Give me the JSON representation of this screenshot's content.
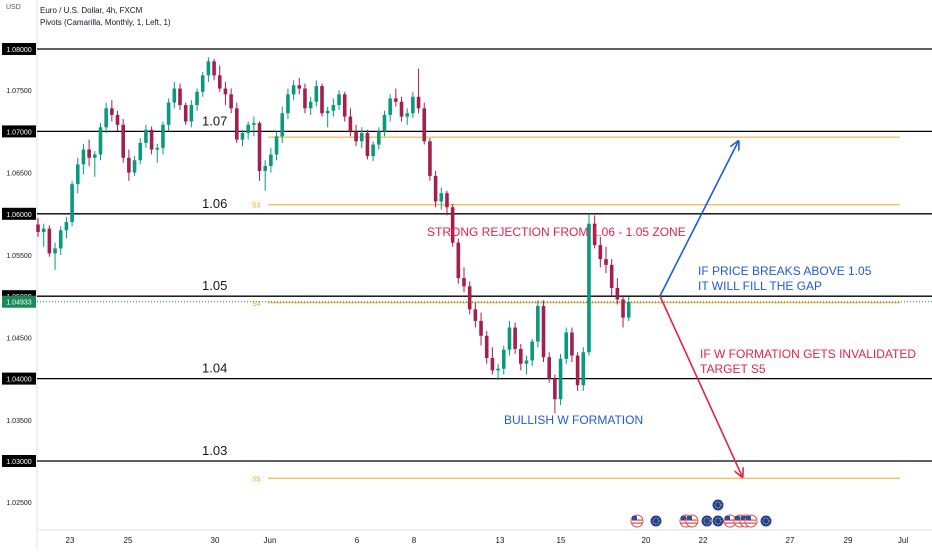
{
  "header": {
    "currency": "USD",
    "symbol": "Euro / U.S. Dollar, 4h, FXCM",
    "indicator": "Pivots (Camarilla, Monthly, 1, Left, 1)"
  },
  "colors": {
    "up": "#26a69a",
    "down": "#ef5350",
    "up_candle": "#089981",
    "down_candle": "#a61e4d",
    "pivot": "#f5a623",
    "blue_text": "#1e5bd8",
    "red_text": "#e0244a",
    "price_tag": "#1b8a5a"
  },
  "chart_data": {
    "type": "candlestick",
    "title": "Euro / U.S. Dollar, 4h, FXCM",
    "ylim": [
      1.0225,
      1.0815
    ],
    "y_ticks": [
      "1.08000",
      "1.07500",
      "1.07000",
      "1.06500",
      "1.06000",
      "1.05500",
      "1.05000",
      "1.04500",
      "1.04000",
      "1.03500",
      "1.03000",
      "1.02500"
    ],
    "y_tick_values": [
      1.08,
      1.075,
      1.07,
      1.065,
      1.06,
      1.055,
      1.05,
      1.045,
      1.04,
      1.035,
      1.03,
      1.025
    ],
    "highlighted_ticks": [
      "1.08000",
      "1.07000",
      "1.06000",
      "1.05000",
      "1.04000",
      "1.03000"
    ],
    "last_price": "1.04933",
    "last_price_value": 1.04933,
    "x_ticks": [
      "23",
      "25",
      "30",
      "Jun",
      "6",
      "8",
      "13",
      "15",
      "20",
      "22",
      "27",
      "29",
      "Jul"
    ],
    "horizontal_levels": [
      {
        "label": "1.07",
        "value": 1.07
      },
      {
        "label": "1.06",
        "value": 1.06
      },
      {
        "label": "1.05",
        "value": 1.05
      },
      {
        "label": "1.04",
        "value": 1.04
      },
      {
        "label": "1.03",
        "value": 1.03
      },
      {
        "label": "",
        "value": 1.08
      }
    ],
    "pivots": [
      {
        "label": "",
        "value": 1.0693
      },
      {
        "label": "S3",
        "value": 1.0611
      },
      {
        "label": "S4",
        "value": 1.0492
      },
      {
        "label": "S5",
        "value": 1.0279
      }
    ],
    "annotations": [
      {
        "text": "STRONG REJECTION FROM 1.06 - 1.05 ZONE",
        "color": "red"
      },
      {
        "text": "IF PRICE BREAKS ABOVE 1.05",
        "color": "blue"
      },
      {
        "text": "IT WILL FILL THE GAP",
        "color": "blue"
      },
      {
        "text": "IF W FORMATION GETS INVALIDATED",
        "color": "red"
      },
      {
        "text": "TARGET S5",
        "color": "red"
      },
      {
        "text": "BULLISH W FORMATION",
        "color": "blue"
      }
    ],
    "candles": [
      [
        1.0587,
        1.0595,
        1.0572,
        1.0578
      ],
      [
        1.0578,
        1.0588,
        1.056,
        1.0582
      ],
      [
        1.0582,
        1.0586,
        1.0548,
        1.0552
      ],
      [
        1.0552,
        1.0565,
        1.0532,
        1.0558
      ],
      [
        1.0558,
        1.0585,
        1.055,
        1.058
      ],
      [
        1.058,
        1.0596,
        1.057,
        1.059
      ],
      [
        1.059,
        1.064,
        1.0585,
        1.0636
      ],
      [
        1.0636,
        1.0668,
        1.0625,
        1.066
      ],
      [
        1.066,
        1.0685,
        1.0648,
        1.0678
      ],
      [
        1.0678,
        1.069,
        1.0658,
        1.0668
      ],
      [
        1.0668,
        1.0676,
        1.0645,
        1.0672
      ],
      [
        1.0672,
        1.071,
        1.0665,
        1.0705
      ],
      [
        1.0705,
        1.0735,
        1.0698,
        1.0728
      ],
      [
        1.0728,
        1.0738,
        1.0712,
        1.072
      ],
      [
        1.072,
        1.0725,
        1.07,
        1.0708
      ],
      [
        1.0708,
        1.0715,
        1.0662,
        1.0668
      ],
      [
        1.0668,
        1.0678,
        1.064,
        1.065
      ],
      [
        1.065,
        1.067,
        1.0646,
        1.0665
      ],
      [
        1.0665,
        1.0692,
        1.066,
        1.0686
      ],
      [
        1.0686,
        1.0708,
        1.068,
        1.0702
      ],
      [
        1.0702,
        1.0706,
        1.0672,
        1.0678
      ],
      [
        1.0678,
        1.0685,
        1.0662,
        1.068
      ],
      [
        1.068,
        1.0712,
        1.0672,
        1.0708
      ],
      [
        1.0708,
        1.074,
        1.07,
        1.0735
      ],
      [
        1.0735,
        1.076,
        1.0728,
        1.0752
      ],
      [
        1.0752,
        1.0758,
        1.0726,
        1.0732
      ],
      [
        1.0732,
        1.0735,
        1.0708,
        1.0712
      ],
      [
        1.0712,
        1.0738,
        1.0705,
        1.0732
      ],
      [
        1.0732,
        1.0752,
        1.0725,
        1.0748
      ],
      [
        1.0748,
        1.0772,
        1.0742,
        1.0768
      ],
      [
        1.0768,
        1.079,
        1.076,
        1.0785
      ],
      [
        1.0785,
        1.0788,
        1.0762,
        1.0768
      ],
      [
        1.0768,
        1.078,
        1.0748,
        1.0752
      ],
      [
        1.0752,
        1.076,
        1.0732,
        1.0745
      ],
      [
        1.0745,
        1.0752,
        1.0722,
        1.0728
      ],
      [
        1.0728,
        1.0735,
        1.0686,
        1.069
      ],
      [
        1.069,
        1.0702,
        1.0682,
        1.0698
      ],
      [
        1.0698,
        1.0712,
        1.069,
        1.0708
      ],
      [
        1.0708,
        1.0718,
        1.0694,
        1.071
      ],
      [
        1.071,
        1.0712,
        1.064,
        1.0652
      ],
      [
        1.0652,
        1.0665,
        1.0628,
        1.0658
      ],
      [
        1.0658,
        1.068,
        1.065,
        1.0672
      ],
      [
        1.0672,
        1.07,
        1.0665,
        1.0694
      ],
      [
        1.0694,
        1.073,
        1.0686,
        1.0722
      ],
      [
        1.0722,
        1.0752,
        1.0715,
        1.0745
      ],
      [
        1.0745,
        1.0762,
        1.0738,
        1.0756
      ],
      [
        1.0756,
        1.0765,
        1.0745,
        1.0752
      ],
      [
        1.0752,
        1.0758,
        1.0722,
        1.0728
      ],
      [
        1.0728,
        1.0742,
        1.072,
        1.0736
      ],
      [
        1.0736,
        1.0762,
        1.073,
        1.0755
      ],
      [
        1.0755,
        1.0758,
        1.0718,
        1.0722
      ],
      [
        1.0722,
        1.073,
        1.0705,
        1.0725
      ],
      [
        1.0725,
        1.074,
        1.0718,
        1.0732
      ],
      [
        1.0732,
        1.075,
        1.0726,
        1.0745
      ],
      [
        1.0745,
        1.0748,
        1.0712,
        1.0718
      ],
      [
        1.0718,
        1.0728,
        1.0694,
        1.07
      ],
      [
        1.07,
        1.0708,
        1.0682,
        1.0688
      ],
      [
        1.0688,
        1.0705,
        1.068,
        1.0698
      ],
      [
        1.0698,
        1.0702,
        1.0666,
        1.067
      ],
      [
        1.067,
        1.0688,
        1.0664,
        1.0684
      ],
      [
        1.0684,
        1.0705,
        1.0678,
        1.07
      ],
      [
        1.07,
        1.0725,
        1.0694,
        1.072
      ],
      [
        1.072,
        1.0745,
        1.0712,
        1.074
      ],
      [
        1.074,
        1.0752,
        1.073,
        1.0736
      ],
      [
        1.0736,
        1.0742,
        1.0712,
        1.0718
      ],
      [
        1.0718,
        1.0728,
        1.0708,
        1.0722
      ],
      [
        1.0722,
        1.0748,
        1.0716,
        1.0742
      ],
      [
        1.0742,
        1.0776,
        1.0722,
        1.0728
      ],
      [
        1.0728,
        1.0735,
        1.0684,
        1.0688
      ],
      [
        1.0688,
        1.0692,
        1.064,
        1.0646
      ],
      [
        1.0646,
        1.0652,
        1.0608,
        1.0615
      ],
      [
        1.0615,
        1.0632,
        1.0605,
        1.0625
      ],
      [
        1.0625,
        1.0628,
        1.0598,
        1.0608
      ],
      [
        1.0608,
        1.0612,
        1.056,
        1.0565
      ],
      [
        1.0565,
        1.057,
        1.0515,
        1.0522
      ],
      [
        1.0522,
        1.0535,
        1.0505,
        1.0512
      ],
      [
        1.0512,
        1.0518,
        1.0478,
        1.0484
      ],
      [
        1.0484,
        1.0492,
        1.0462,
        1.047
      ],
      [
        1.047,
        1.048,
        1.044,
        1.0452
      ],
      [
        1.0452,
        1.0458,
        1.0418,
        1.0425
      ],
      [
        1.0425,
        1.0438,
        1.0405,
        1.041
      ],
      [
        1.041,
        1.0418,
        1.0398,
        1.0412
      ],
      [
        1.0412,
        1.044,
        1.0405,
        1.0435
      ],
      [
        1.0435,
        1.047,
        1.0428,
        1.0462
      ],
      [
        1.0462,
        1.0468,
        1.043,
        1.0436
      ],
      [
        1.0436,
        1.0442,
        1.041,
        1.0418
      ],
      [
        1.0418,
        1.0428,
        1.0405,
        1.0422
      ],
      [
        1.0422,
        1.0448,
        1.0415,
        1.0445
      ],
      [
        1.0445,
        1.0495,
        1.0438,
        1.0488
      ],
      [
        1.0488,
        1.0495,
        1.042,
        1.0426
      ],
      [
        1.0426,
        1.0432,
        1.0395,
        1.04
      ],
      [
        1.04,
        1.0405,
        1.0358,
        1.0375
      ],
      [
        1.0375,
        1.043,
        1.0368,
        1.0424
      ],
      [
        1.0424,
        1.0462,
        1.0418,
        1.0456
      ],
      [
        1.0456,
        1.0462,
        1.042,
        1.0428
      ],
      [
        1.0428,
        1.0432,
        1.0385,
        1.0392
      ],
      [
        1.0392,
        1.0438,
        1.0385,
        1.0432
      ],
      [
        1.0432,
        1.06,
        1.0428,
        1.0588
      ],
      [
        1.0588,
        1.0598,
        1.0558,
        1.0562
      ],
      [
        1.0562,
        1.0572,
        1.0535,
        1.0545
      ],
      [
        1.0545,
        1.056,
        1.0528,
        1.0538
      ],
      [
        1.0538,
        1.0545,
        1.05,
        1.051
      ],
      [
        1.051,
        1.0522,
        1.049,
        1.0496
      ],
      [
        1.0496,
        1.05,
        1.0462,
        1.0474
      ],
      [
        1.0474,
        1.0499,
        1.047,
        1.0493
      ]
    ]
  }
}
